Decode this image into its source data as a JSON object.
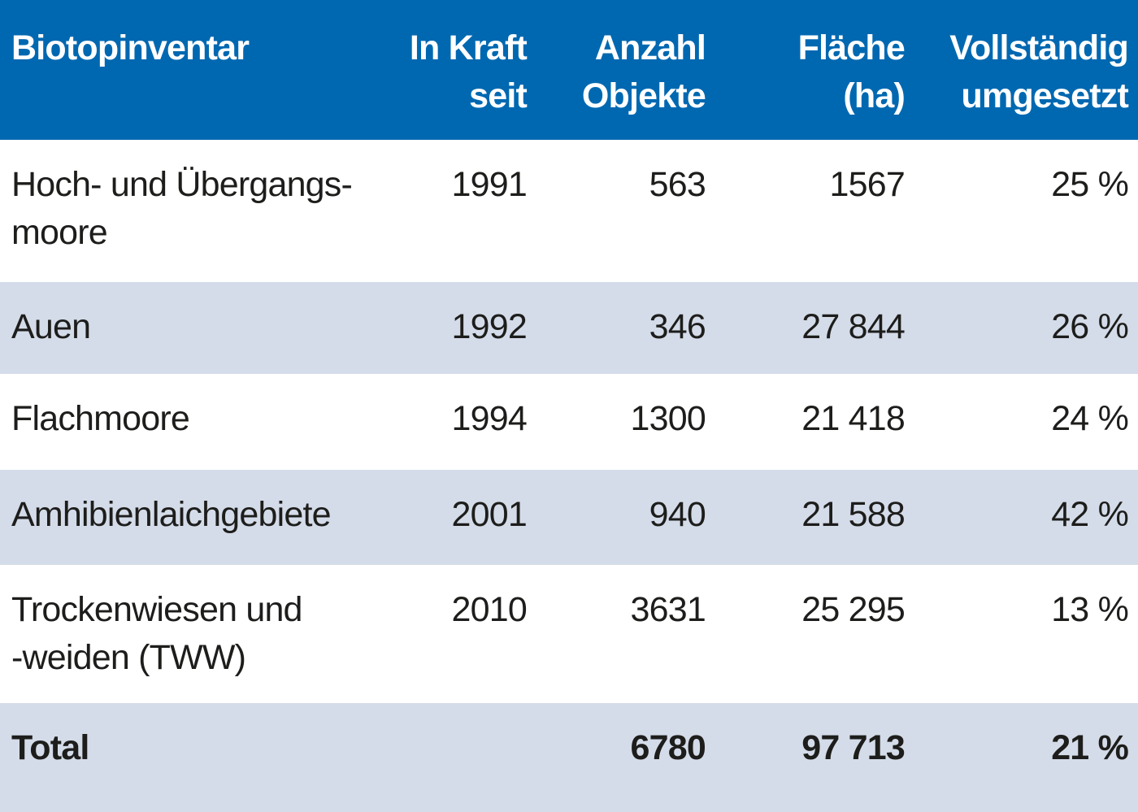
{
  "colors": {
    "header_bg": "#0068b1",
    "header_text": "#ffffff",
    "row_alt_bg": "#d4dce9",
    "row_bg": "#ffffff",
    "body_text": "#1d1d1b"
  },
  "table": {
    "columns": [
      {
        "line1": "Biotopinventar",
        "line2": ""
      },
      {
        "line1": "In Kraft",
        "line2": "seit"
      },
      {
        "line1": "Anzahl",
        "line2": "Objekte"
      },
      {
        "line1": "Fläche",
        "line2": "(ha)"
      },
      {
        "line1": "Vollständig",
        "line2": "umgesetzt"
      }
    ],
    "rows": [
      {
        "name_line1": "Hoch- und Übergangs-",
        "name_line2": "moore",
        "in_kraft_seit": "1991",
        "anzahl_objekte": "563",
        "flaeche_ha": "1567",
        "vollstaendig_umgesetzt": "25 %"
      },
      {
        "name_line1": "Auen",
        "name_line2": "",
        "in_kraft_seit": "1992",
        "anzahl_objekte": "346",
        "flaeche_ha": "27 844",
        "vollstaendig_umgesetzt": "26 %"
      },
      {
        "name_line1": "Flachmoore",
        "name_line2": "",
        "in_kraft_seit": "1994",
        "anzahl_objekte": "1300",
        "flaeche_ha": "21 418",
        "vollstaendig_umgesetzt": "24 %"
      },
      {
        "name_line1": "Amhibienlaichgebiete",
        "name_line2": "",
        "in_kraft_seit": "2001",
        "anzahl_objekte": "940",
        "flaeche_ha": "21 588",
        "vollstaendig_umgesetzt": "42 %"
      },
      {
        "name_line1": "Trockenwiesen und",
        "name_line2": "-weiden (TWW)",
        "in_kraft_seit": "2010",
        "anzahl_objekte": "3631",
        "flaeche_ha": "25 295",
        "vollstaendig_umgesetzt": "13 %"
      }
    ],
    "total": {
      "label": "Total",
      "in_kraft_seit": "",
      "anzahl_objekte": "6780",
      "flaeche_ha": "97 713",
      "vollstaendig_umgesetzt": "21 %"
    }
  },
  "chart_data": {
    "type": "table",
    "title": "Biotopinventar",
    "columns": [
      "Biotopinventar",
      "In Kraft seit",
      "Anzahl Objekte",
      "Fläche (ha)",
      "Vollständig umgesetzt"
    ],
    "rows": [
      [
        "Hoch- und Übergangsmoore",
        1991,
        563,
        1567,
        "25 %"
      ],
      [
        "Auen",
        1992,
        346,
        "27 844",
        "26 %"
      ],
      [
        "Flachmoore",
        1994,
        1300,
        "21 418",
        "24 %"
      ],
      [
        "Amhibienlaichgebiete",
        2001,
        940,
        "21 588",
        "42 %"
      ],
      [
        "Trockenwiesen und -weiden (TWW)",
        2010,
        3631,
        "25 295",
        "13 %"
      ],
      [
        "Total",
        "",
        6780,
        "97 713",
        "21 %"
      ]
    ]
  }
}
